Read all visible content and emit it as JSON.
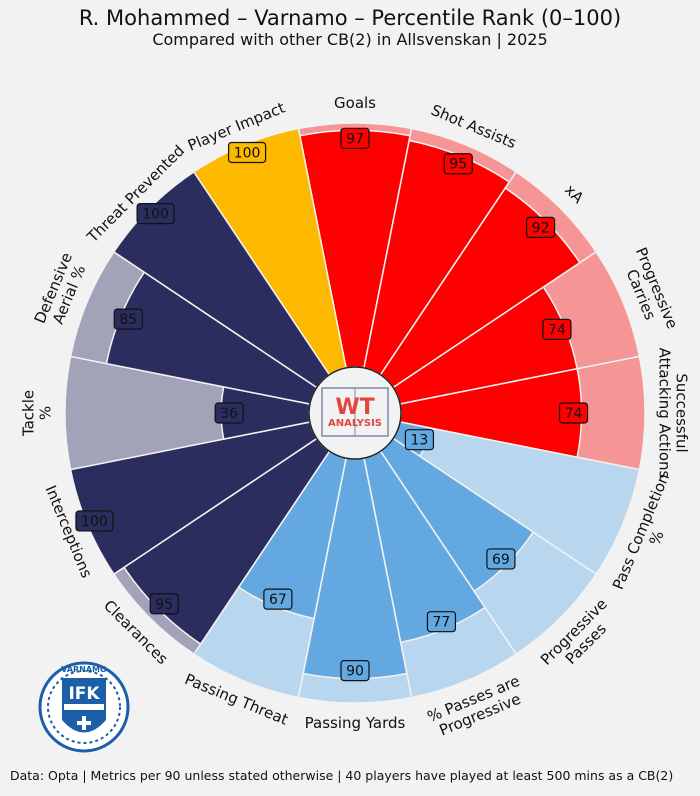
{
  "header": {
    "title": "R. Mohammed – Varnamo – Percentile Rank (0–100)",
    "subtitle": "Compared with other CB(2) in Allsvenskan | 2025"
  },
  "footer": {
    "text": "Data: Opta | Metrics per 90 unless stated otherwise | 40 players have played at least 500 mins as a CB(2)"
  },
  "center_logo": {
    "line1": "WT",
    "line2": "ANALYSIS"
  },
  "club_badge": {
    "top_text": "VARNAMO",
    "letters": "IFK"
  },
  "colors": {
    "background": "#f2f2f2",
    "attacking": "#ff0000",
    "attacking_light": "#f59595",
    "impact": "#fcb900",
    "passing": "#63a8e0",
    "passing_light": "#b8d6ee",
    "defending": "#2b2d5f",
    "defending_light": "#a2a3b8"
  },
  "chart_data": {
    "type": "polar-bar",
    "title": "R. Mohammed – Varnamo – Percentile Rank (0–100)",
    "subtitle": "Compared with other CB(2) in Allsvenskan | 2025",
    "rlim": [
      0,
      100
    ],
    "categories": [
      {
        "label": "Goals",
        "value": 97,
        "group": "attacking"
      },
      {
        "label": "Shot Assists",
        "value": 95,
        "group": "attacking"
      },
      {
        "label": "xA",
        "value": 92,
        "group": "attacking"
      },
      {
        "label": "Progressive\nCarries",
        "value": 74,
        "group": "attacking"
      },
      {
        "label": "Successful\nAttacking Actions",
        "value": 74,
        "group": "attacking"
      },
      {
        "label": "Pass Completion\n%",
        "value": 13,
        "group": "passing"
      },
      {
        "label": "Progressive\nPasses",
        "value": 69,
        "group": "passing"
      },
      {
        "label": "% Passes are\nProgressive",
        "value": 77,
        "group": "passing"
      },
      {
        "label": "Passing Yards",
        "value": 90,
        "group": "passing"
      },
      {
        "label": "Passing Threat",
        "value": 67,
        "group": "passing"
      },
      {
        "label": "Clearances",
        "value": 95,
        "group": "defending"
      },
      {
        "label": "Interceptions",
        "value": 100,
        "group": "defending"
      },
      {
        "label": "Tackle\n%",
        "value": 36,
        "group": "defending"
      },
      {
        "label": "Defensive\nAerial %",
        "value": 85,
        "group": "defending"
      },
      {
        "label": "Threat Prevented",
        "value": 100,
        "group": "defending"
      },
      {
        "label": "Player Impact",
        "value": 100,
        "group": "impact"
      }
    ]
  }
}
